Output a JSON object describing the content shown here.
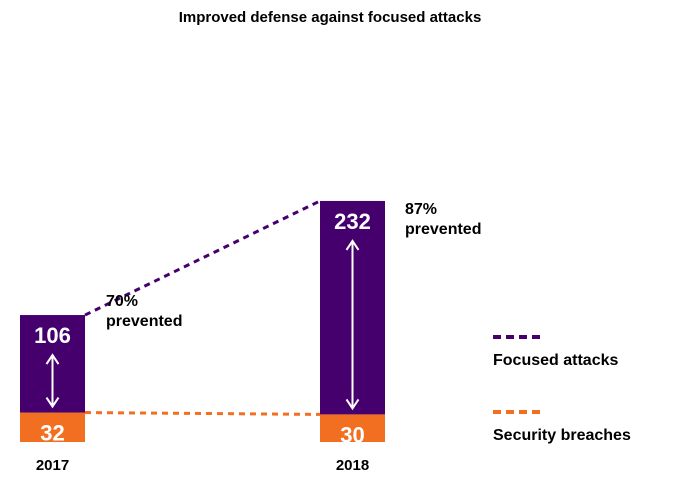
{
  "chart_data": {
    "type": "bar",
    "title": "Improved defense against focused attacks",
    "categories": [
      "2017",
      "2018"
    ],
    "series": [
      {
        "name": "Focused attacks",
        "values": [
          106,
          232
        ],
        "color": "#46006e"
      },
      {
        "name": "Security breaches",
        "values": [
          32,
          30
        ],
        "color": "#f26f22"
      }
    ],
    "annotations": [
      {
        "category": "2017",
        "line1": "70%",
        "line2": "prevented"
      },
      {
        "category": "2018",
        "line1": "87%",
        "line2": "prevented"
      }
    ],
    "legend_position": "bottom-right",
    "grid": false
  }
}
